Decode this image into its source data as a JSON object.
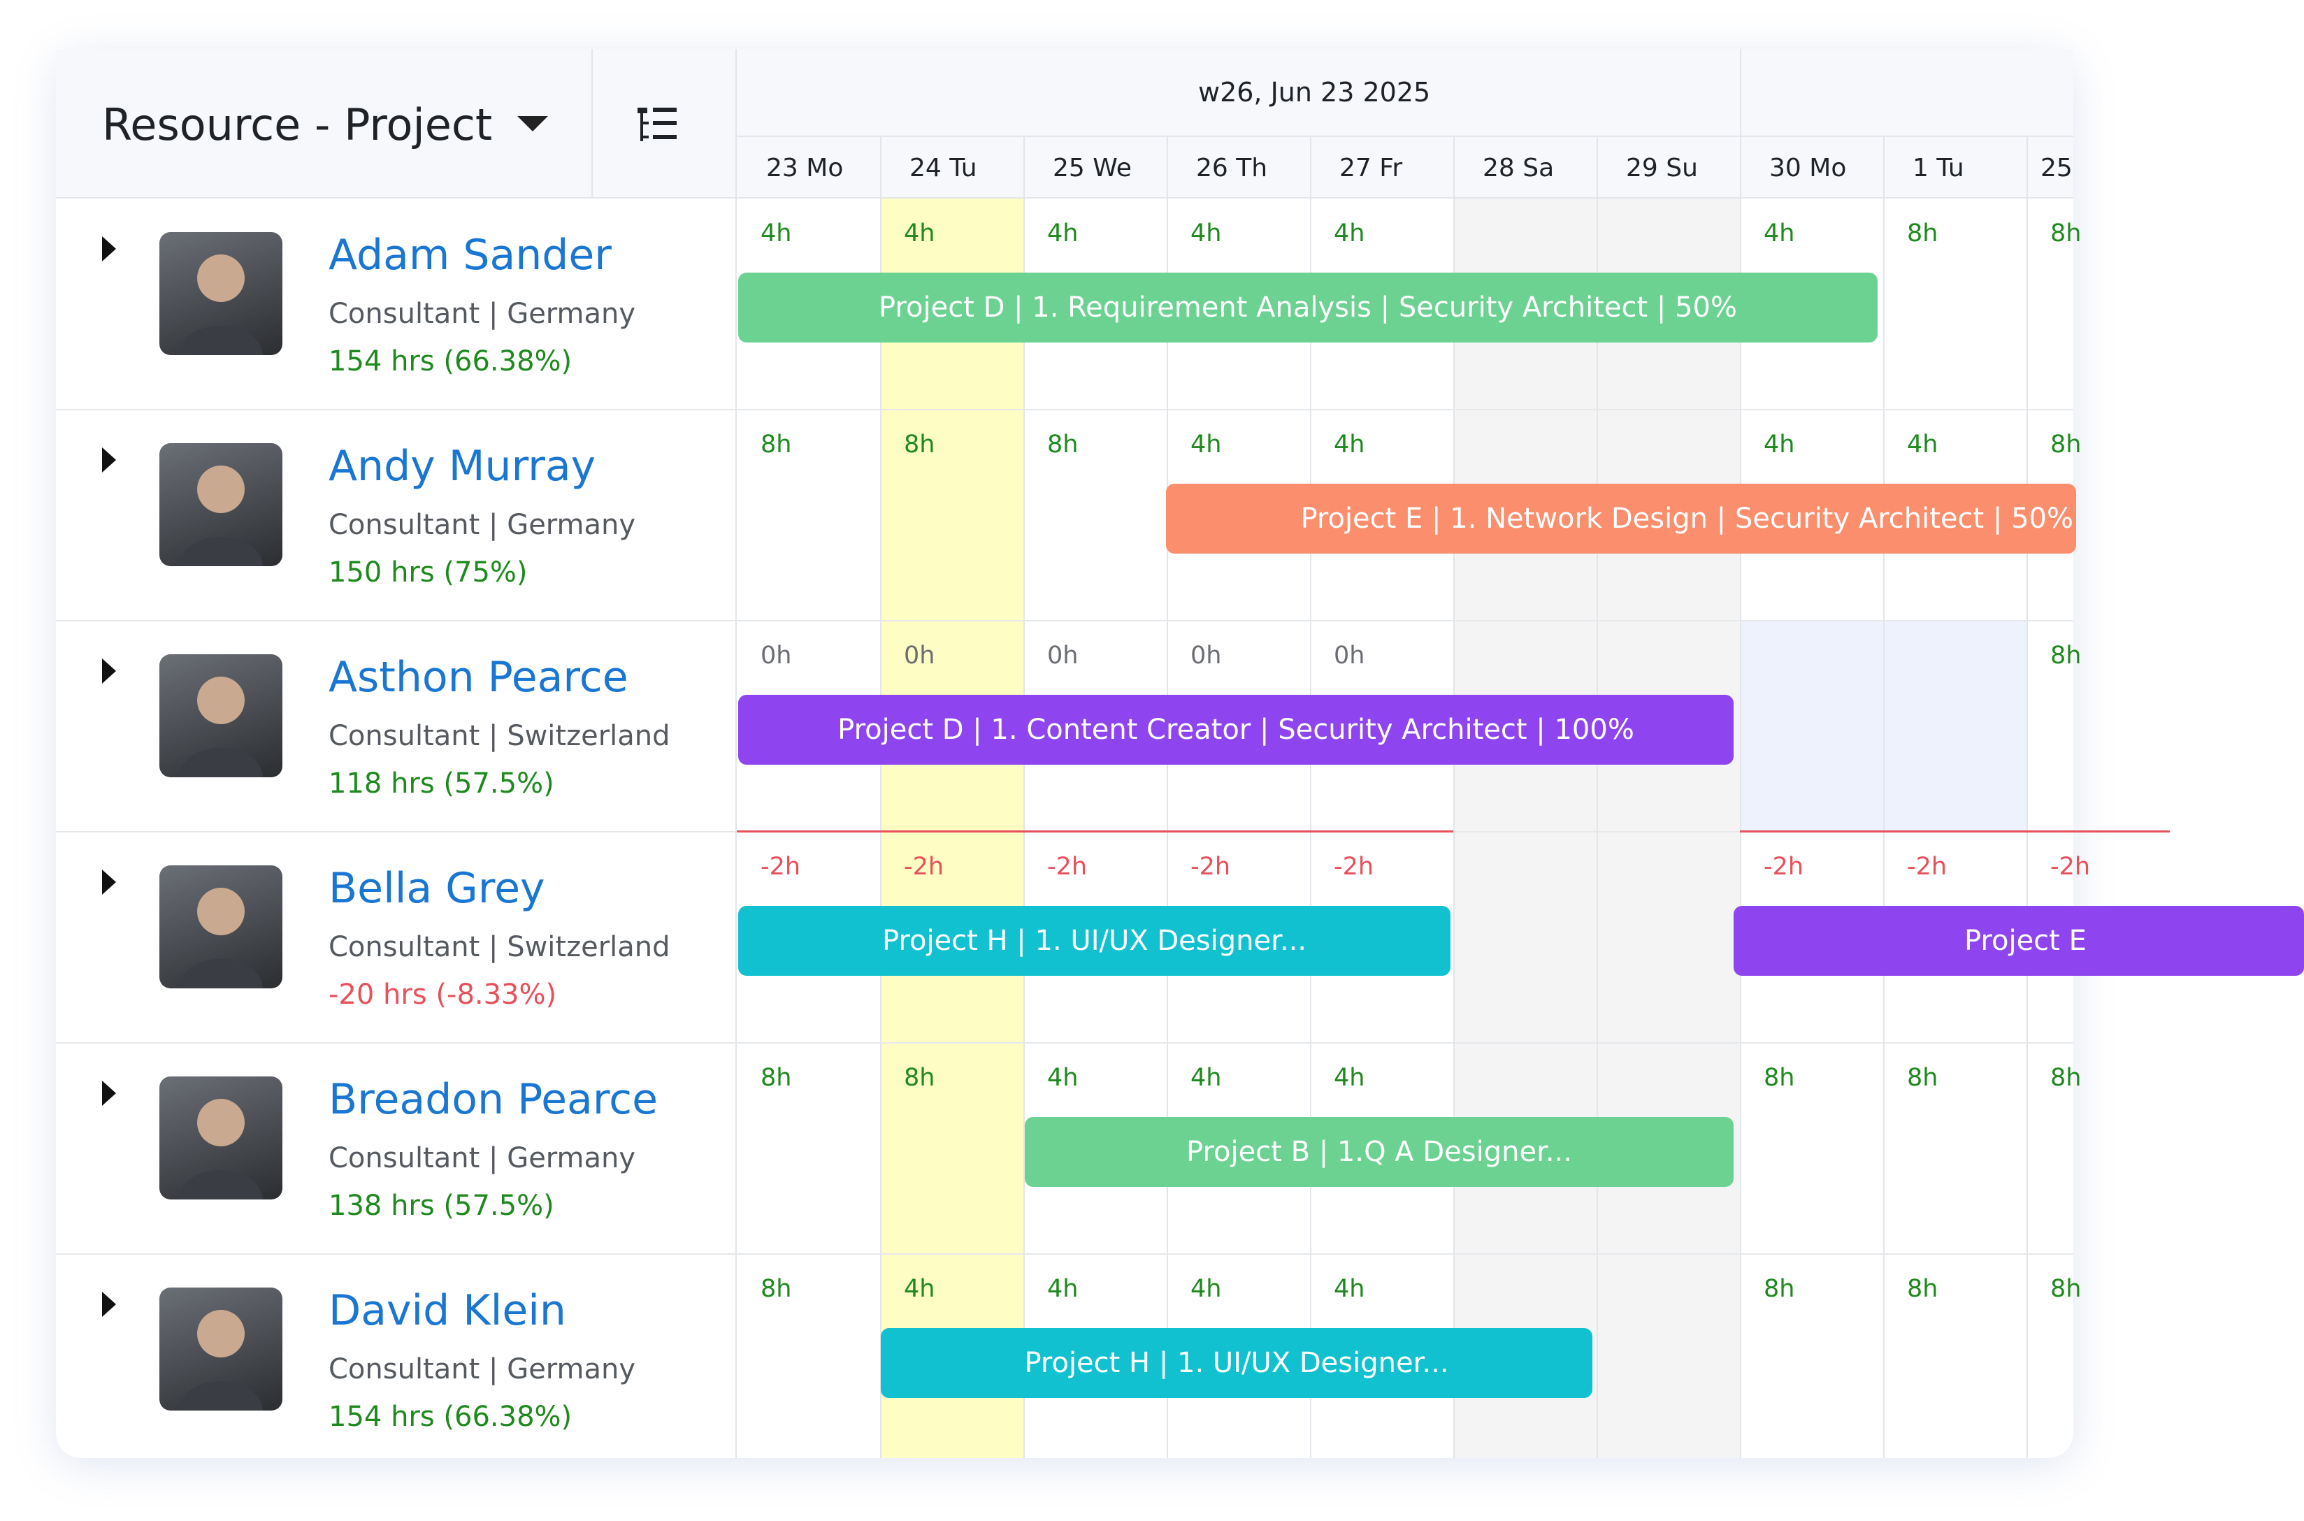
{
  "header": {
    "view_title": "Resource - Project",
    "week_label": "w26, Jun 23 2025",
    "days": [
      "23 Mo",
      "24 Tu",
      "25 We",
      "26 Th",
      "27 Fr",
      "28 Sa",
      "29 Su",
      "30 Mo",
      "1 Tu",
      "25"
    ]
  },
  "colors": {
    "today_highlight": "#fefdc3",
    "weekend": "#f4f4f4",
    "positive_hours": "#1e8a1e",
    "negative_hours": "#e8505b",
    "name": "#1976d2"
  },
  "resources": [
    {
      "name": "Adam Sander",
      "subtitle": "Consultant | Germany",
      "hours": "154 hrs (66.38%)",
      "over": false,
      "avatar_icon": "person-avatar",
      "cells": [
        "4h",
        "4h",
        "4h",
        "4h",
        "4h",
        "",
        "",
        "4h",
        "8h",
        "8h"
      ],
      "bars": [
        {
          "label": "Project D |  1. Requirement Analysis  | Security Architect | 50%",
          "color": "#6cd291"
        }
      ]
    },
    {
      "name": "Andy Murray",
      "subtitle": "Consultant | Germany",
      "hours": "150 hrs (75%)",
      "over": false,
      "avatar_icon": "person-avatar",
      "cells": [
        "8h",
        "8h",
        "8h",
        "4h",
        "4h",
        "",
        "",
        "4h",
        "4h",
        "8h"
      ],
      "bars": [
        {
          "label": "Project E |  1. Network Design | Security Architect | 50%",
          "color": "#fb8e6c"
        }
      ]
    },
    {
      "name": "Asthon Pearce",
      "subtitle": "Consultant | Switzerland",
      "hours": "118 hrs (57.5%)",
      "over": false,
      "avatar_icon": "person-avatar",
      "cells": [
        "0h",
        "0h",
        "0h",
        "0h",
        "0h",
        "",
        "",
        "",
        "",
        "8h"
      ],
      "bars": [
        {
          "label": "Project D |  1. Content Creator  | Security Architect | 100%",
          "color": "#8e45ef"
        }
      ]
    },
    {
      "name": "Bella Grey",
      "subtitle": "Consultant | Switzerland",
      "hours": "-20 hrs (-8.33%)",
      "over": true,
      "avatar_icon": "person-avatar",
      "cells": [
        "-2h",
        "-2h",
        "-2h",
        "-2h",
        "-2h",
        "",
        "",
        "-2h",
        "-2h",
        "-2h"
      ],
      "bars": [
        {
          "label": "Project H |  1. UI/UX Designer...",
          "color": "#12c1cf"
        },
        {
          "label": "Project E",
          "color": "#8e45ef"
        }
      ]
    },
    {
      "name": "Breadon Pearce",
      "subtitle": "Consultant | Germany",
      "hours": "138 hrs (57.5%)",
      "over": false,
      "avatar_icon": "person-avatar",
      "cells": [
        "8h",
        "8h",
        "4h",
        "4h",
        "4h",
        "",
        "",
        "8h",
        "8h",
        "8h"
      ],
      "bars": [
        {
          "label": "Project B |  1.Q A Designer...",
          "color": "#6cd291"
        }
      ]
    },
    {
      "name": "David Klein",
      "subtitle": "Consultant | Germany",
      "hours": "154 hrs (66.38%)",
      "over": false,
      "avatar_icon": "person-avatar",
      "cells": [
        "8h",
        "4h",
        "4h",
        "4h",
        "4h",
        "",
        "",
        "8h",
        "8h",
        "8h"
      ],
      "bars": [
        {
          "label": "Project H |  1. UI/UX Designer...",
          "color": "#12c1cf"
        }
      ]
    }
  ]
}
